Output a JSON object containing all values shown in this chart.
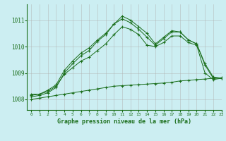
{
  "title": "Graphe pression niveau de la mer (hPa)",
  "bg_color": "#cceef2",
  "grid_color": "#b0b0b0",
  "line_color": "#1a6e1a",
  "xlim": [
    -0.5,
    23
  ],
  "ylim": [
    1007.6,
    1011.6
  ],
  "yticks": [
    1008,
    1009,
    1010,
    1011
  ],
  "xticks": [
    0,
    1,
    2,
    3,
    4,
    5,
    6,
    7,
    8,
    9,
    10,
    11,
    12,
    13,
    14,
    15,
    16,
    17,
    18,
    19,
    20,
    21,
    22,
    23
  ],
  "series1": [
    1008.15,
    1008.2,
    1008.3,
    1008.5,
    1008.95,
    1009.2,
    1009.45,
    1009.6,
    1009.85,
    1010.1,
    1010.45,
    1010.75,
    1010.65,
    1010.45,
    1010.05,
    1010.0,
    1010.15,
    1010.4,
    1010.4,
    1010.15,
    1010.05,
    1009.0,
    1008.75,
    1008.8
  ],
  "series2": [
    1008.2,
    1008.2,
    1008.35,
    1008.55,
    1009.1,
    1009.45,
    1009.75,
    1009.95,
    1010.25,
    1010.5,
    1010.85,
    1011.05,
    1010.9,
    1010.65,
    1010.35,
    1010.05,
    1010.3,
    1010.55,
    1010.55,
    1010.25,
    1010.1,
    1009.3,
    1008.8,
    1008.8
  ],
  "series3": [
    1008.1,
    1008.15,
    1008.25,
    1008.45,
    1009.0,
    1009.35,
    1009.65,
    1009.85,
    1010.2,
    1010.45,
    1010.85,
    1011.15,
    1011.0,
    1010.75,
    1010.5,
    1010.1,
    1010.35,
    1010.6,
    1010.55,
    1010.25,
    1010.1,
    1009.35,
    1008.85,
    1008.8
  ],
  "series4": [
    1008.0,
    1008.05,
    1008.1,
    1008.15,
    1008.2,
    1008.25,
    1008.3,
    1008.35,
    1008.4,
    1008.45,
    1008.5,
    1008.52,
    1008.54,
    1008.56,
    1008.58,
    1008.6,
    1008.62,
    1008.65,
    1008.7,
    1008.72,
    1008.75,
    1008.77,
    1008.8,
    1008.82
  ]
}
